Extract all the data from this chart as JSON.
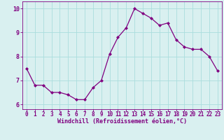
{
  "hours": [
    0,
    1,
    2,
    3,
    4,
    5,
    6,
    7,
    8,
    9,
    10,
    11,
    12,
    13,
    14,
    15,
    16,
    17,
    18,
    19,
    20,
    21,
    22,
    23
  ],
  "values": [
    7.5,
    6.8,
    6.8,
    6.5,
    6.5,
    6.4,
    6.2,
    6.2,
    6.7,
    7.0,
    8.1,
    8.8,
    9.2,
    10.0,
    9.8,
    9.6,
    9.3,
    9.4,
    8.7,
    8.4,
    8.3,
    8.3,
    8.0,
    7.4
  ],
  "line_color": "#800080",
  "marker": "D",
  "marker_size": 2.0,
  "bg_color": "#d9f0f0",
  "grid_color": "#aadddd",
  "xlabel": "Windchill (Refroidissement éolien,°C)",
  "xlabel_color": "#800080",
  "tick_color": "#800080",
  "ylim": [
    5.8,
    10.3
  ],
  "xlim": [
    -0.5,
    23.5
  ],
  "yticks": [
    6,
    7,
    8,
    9,
    10
  ],
  "xticks": [
    0,
    1,
    2,
    3,
    4,
    5,
    6,
    7,
    8,
    9,
    10,
    11,
    12,
    13,
    14,
    15,
    16,
    17,
    18,
    19,
    20,
    21,
    22,
    23
  ],
  "tick_fontsize": 5.5,
  "xlabel_fontsize": 6.0,
  "linewidth": 0.9
}
